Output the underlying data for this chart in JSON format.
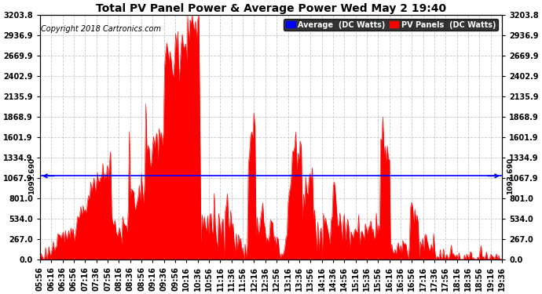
{
  "title": "Total PV Panel Power & Average Power Wed May 2 19:40",
  "copyright": "Copyright 2018 Cartronics.com",
  "y_max": 3203.8,
  "y_min": 0.0,
  "y_ticks": [
    0.0,
    267.0,
    534.0,
    801.0,
    1067.9,
    1334.9,
    1601.9,
    1868.9,
    2135.9,
    2402.9,
    2669.9,
    2936.9,
    3203.8
  ],
  "average_value": 1093.69,
  "average_label": "1093.690",
  "bg_color": "#ffffff",
  "fill_color": "#ff0000",
  "avg_line_color": "#0000ff",
  "grid_color": "#bbbbbb",
  "legend_avg_bg": "#0000ff",
  "legend_pv_bg": "#ff0000",
  "x_tick_labels": [
    "05:56",
    "06:16",
    "06:36",
    "06:56",
    "07:16",
    "07:36",
    "07:56",
    "08:16",
    "08:36",
    "08:56",
    "09:16",
    "09:36",
    "09:56",
    "10:16",
    "10:36",
    "10:56",
    "11:16",
    "11:36",
    "11:56",
    "12:16",
    "12:36",
    "12:56",
    "13:16",
    "13:36",
    "13:56",
    "14:16",
    "14:36",
    "14:56",
    "15:16",
    "15:36",
    "15:56",
    "16:16",
    "16:36",
    "16:56",
    "17:16",
    "17:36",
    "17:56",
    "18:16",
    "18:36",
    "18:56",
    "19:16",
    "19:36"
  ],
  "n_points": 420,
  "title_fontsize": 10,
  "tick_fontsize": 7,
  "copyright_fontsize": 7
}
